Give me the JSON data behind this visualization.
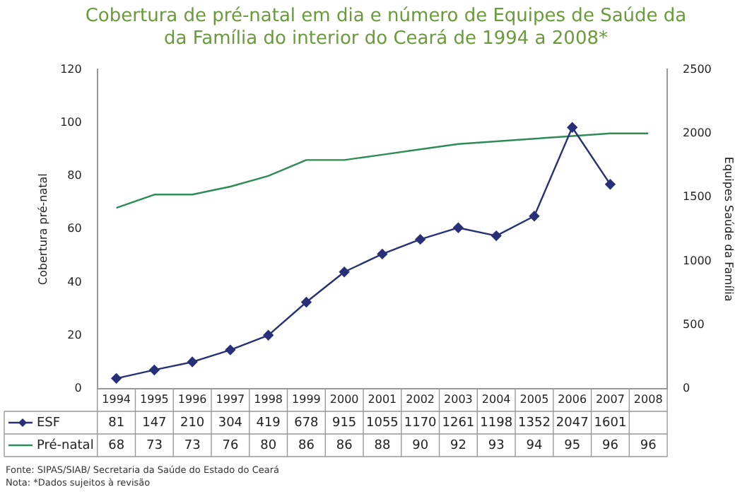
{
  "chart_data": {
    "type": "line",
    "title": "Cobertura de pré-natal em dia e número de Equipes de Saúde da\nda Família do interior do Ceará de 1994 a 2008*",
    "ylabel": "Cobertura pré-natal",
    "y2label": "Equipes Saúde da Família",
    "categories": [
      "1994",
      "1995",
      "1996",
      "1997",
      "1998",
      "1999",
      "2000",
      "2001",
      "2002",
      "2003",
      "2004",
      "2005",
      "2006",
      "2007",
      "2008"
    ],
    "series": [
      {
        "name": "ESF",
        "color": "#283078",
        "axis": "y2",
        "marker": "diamond",
        "values": [
          81,
          147,
          210,
          304,
          419,
          678,
          915,
          1055,
          1170,
          1261,
          1198,
          1352,
          2047,
          1601,
          null
        ]
      },
      {
        "name": "Pré-natal",
        "color": "#2e8b57",
        "axis": "y",
        "marker": "none",
        "values": [
          68,
          73,
          73,
          76,
          80,
          86,
          86,
          88,
          90,
          92,
          93,
          94,
          95,
          96,
          96
        ]
      }
    ],
    "ylim": [
      0,
      120
    ],
    "yticks": [
      0,
      20,
      40,
      60,
      80,
      100,
      120
    ],
    "y2lim": [
      0,
      2500
    ],
    "y2ticks": [
      0,
      500,
      1000,
      1500,
      2000,
      2500
    ],
    "grid": false,
    "legend": "bottom left",
    "data_labels": true,
    "annotations": [
      "Fonte: SIPAS/SIAB/ Secretaria da Saúde do Estado do Ceará",
      "Nota: *Dados sujeitos à revisão"
    ]
  }
}
